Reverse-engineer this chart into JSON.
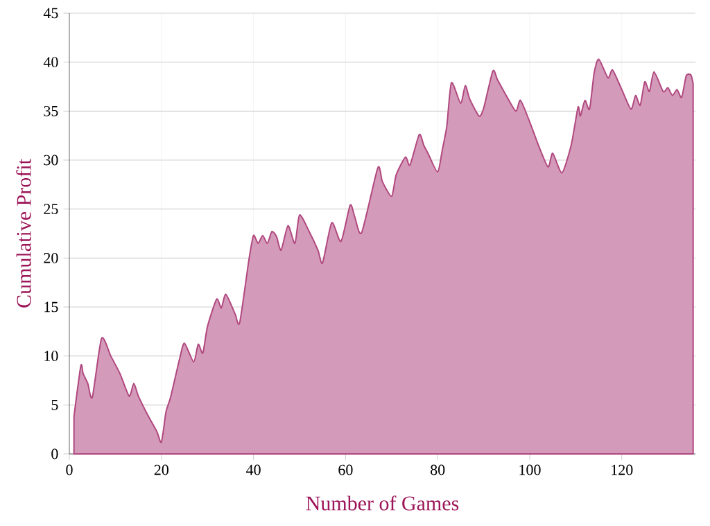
{
  "chart_data": {
    "type": "area",
    "xlabel": "Number of Games",
    "ylabel": "Cumulative Profit",
    "color": "#b0487f",
    "x": [
      1,
      2.5,
      3,
      4,
      5,
      7,
      9,
      11,
      13,
      14,
      15,
      17,
      19,
      20,
      21,
      22,
      24,
      25,
      27,
      28,
      29,
      30,
      32,
      33,
      34,
      36,
      37,
      39,
      40,
      41,
      42,
      43,
      44,
      45,
      46,
      47.5,
      49,
      50,
      52,
      54,
      55,
      57,
      59,
      61,
      62,
      63.5,
      67,
      68,
      70,
      71,
      73,
      74,
      76,
      77,
      78,
      80,
      81,
      82,
      83,
      85,
      86,
      87,
      89,
      90,
      92,
      93,
      95,
      97,
      98,
      100,
      102,
      104,
      105,
      107,
      109,
      110.5,
      111,
      112,
      113,
      114,
      115,
      117,
      118,
      120,
      122,
      123,
      124,
      125,
      126,
      127,
      129,
      130,
      131,
      132,
      133,
      134,
      135,
      135.5
    ],
    "values": [
      3.8,
      9.0,
      8.2,
      7.2,
      5.8,
      11.8,
      10.0,
      8.2,
      5.9,
      7.2,
      5.9,
      4.0,
      2.3,
      1.2,
      4.3,
      5.8,
      9.8,
      11.3,
      9.4,
      11.2,
      10.3,
      13.0,
      15.8,
      14.9,
      16.3,
      14.3,
      13.4,
      19.8,
      22.3,
      21.5,
      22.3,
      21.5,
      22.7,
      22.2,
      20.8,
      23.3,
      21.5,
      24.4,
      22.8,
      20.8,
      19.5,
      23.6,
      21.7,
      25.4,
      24.2,
      22.6,
      29.2,
      27.8,
      26.3,
      28.5,
      30.3,
      29.5,
      32.6,
      31.5,
      30.6,
      28.8,
      31.0,
      33.5,
      37.9,
      35.8,
      37.6,
      36.2,
      34.5,
      35.3,
      39.1,
      38.2,
      36.5,
      35.0,
      36.1,
      33.9,
      31.4,
      29.3,
      30.7,
      28.7,
      31.5,
      35.4,
      34.5,
      36.1,
      35.2,
      38.9,
      40.3,
      38.4,
      39.2,
      37.2,
      35.2,
      36.6,
      35.6,
      38.0,
      37.0,
      39.0,
      37.0,
      37.4,
      36.6,
      37.2,
      36.4,
      38.6,
      38.7,
      37.8
    ],
    "xlim": [
      0,
      136
    ],
    "ylim": [
      0,
      45
    ],
    "xticks": [
      0,
      20,
      40,
      60,
      80,
      100,
      120
    ],
    "yticks": [
      0,
      5,
      10,
      15,
      20,
      25,
      30,
      35,
      40,
      45
    ],
    "grid": true
  }
}
